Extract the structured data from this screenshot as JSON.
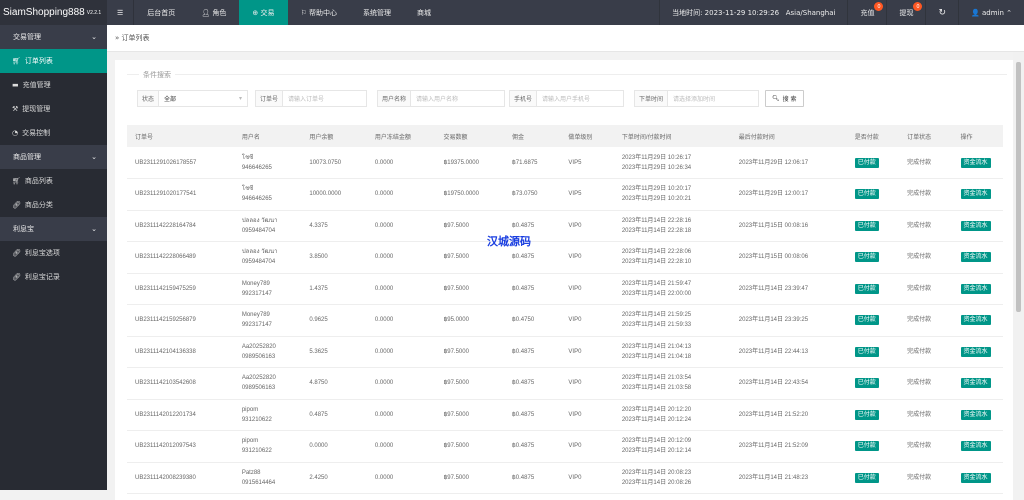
{
  "app": {
    "name": "SiamShopping888",
    "version": "V2.2.1"
  },
  "topnav": [
    {
      "label": "后台首页",
      "icon": ""
    },
    {
      "label": "角色",
      "icon": "user-icon"
    },
    {
      "label": "交易",
      "icon": "globe-icon",
      "active": true
    },
    {
      "label": "帮助中心",
      "icon": "flag-icon"
    },
    {
      "label": "系统管理",
      "icon": ""
    },
    {
      "label": "商城",
      "icon": ""
    }
  ],
  "topright": {
    "time_label": "当地时间: 2023-11-29 10:29:26",
    "timezone": "Asia/Shanghai",
    "recharge": "充值",
    "recharge_badge": "0",
    "withdraw": "提现",
    "withdraw_badge": "0",
    "user": "admin"
  },
  "sidebar": [
    {
      "group": "交易管理",
      "items": [
        {
          "label": "订单列表",
          "icon": "cart-icon",
          "active": true
        },
        {
          "label": "充值管理",
          "icon": "monitor-icon"
        },
        {
          "label": "提现管理",
          "icon": "hammer-icon"
        },
        {
          "label": "交易控制",
          "icon": "gauge-icon"
        }
      ]
    },
    {
      "group": "商品管理",
      "items": [
        {
          "label": "商品列表",
          "icon": "cart-icon"
        },
        {
          "label": "商品分类",
          "icon": "link-icon"
        }
      ]
    },
    {
      "group": "利息宝",
      "items": [
        {
          "label": "利息宝选项",
          "icon": "link-icon"
        },
        {
          "label": "利息宝记录",
          "icon": "link-icon"
        }
      ]
    }
  ],
  "breadcrumb": "订单列表",
  "search": {
    "legend": "条件搜索",
    "status_label": "状态",
    "status_value": "全部",
    "order_label": "订单号",
    "order_ph": "请输入订单号",
    "user_label": "用户名称",
    "user_ph": "请输入用户名称",
    "phone_label": "手机号",
    "phone_ph": "请输入用户手机号",
    "time_label": "下单时间",
    "time_ph": "请选择添加时间",
    "button": "搜 索"
  },
  "table": {
    "headers": [
      "订单号",
      "用户名",
      "用户余额",
      "用户冻结金额",
      "交易数额",
      "佣金",
      "做单级别",
      "下单时间/付款时间",
      "最后付款时间",
      "是否付款",
      "订单状态",
      "操作"
    ],
    "rows": [
      [
        "UB2311291026178557",
        "โชซี",
        "946646265",
        "10073.0750",
        "0.0000",
        "฿19375.0000",
        "฿71.6875",
        "VIP5",
        "2023年11月29日 10:26:17",
        "2023年11月29日 10:26:34",
        "2023年11月29日 12:06:17"
      ],
      [
        "UB2311291020177541",
        "โชซี",
        "946646265",
        "10000.0000",
        "0.0000",
        "฿19750.0000",
        "฿73.0750",
        "VIP5",
        "2023年11月29日 10:20:17",
        "2023年11月29日 10:20:21",
        "2023年11月29日 12:00:17"
      ],
      [
        "UB2311142228164784",
        "ปลลอง วัฒนา",
        "0959484704",
        "4.3375",
        "0.0000",
        "฿97.5000",
        "฿0.4875",
        "VIP0",
        "2023年11月14日 22:28:16",
        "2023年11月14日 22:28:18",
        "2023年11月15日 00:08:16"
      ],
      [
        "UB2311142228066489",
        "ปลลอง วัฒนา",
        "0959484704",
        "3.8500",
        "0.0000",
        "฿97.5000",
        "฿0.4875",
        "VIP0",
        "2023年11月14日 22:28:06",
        "2023年11月14日 22:28:10",
        "2023年11月15日 00:08:06"
      ],
      [
        "UB2311142159475259",
        "Money789",
        "992317147",
        "1.4375",
        "0.0000",
        "฿97.5000",
        "฿0.4875",
        "VIP0",
        "2023年11月14日 21:59:47",
        "2023年11月14日 22:00:00",
        "2023年11月14日 23:39:47"
      ],
      [
        "UB2311142159256879",
        "Money789",
        "992317147",
        "0.9625",
        "0.0000",
        "฿95.0000",
        "฿0.4750",
        "VIP0",
        "2023年11月14日 21:59:25",
        "2023年11月14日 21:59:33",
        "2023年11月14日 23:39:25"
      ],
      [
        "UB2311142104136338",
        "Aa20252820",
        "0989506163",
        "5.3625",
        "0.0000",
        "฿97.5000",
        "฿0.4875",
        "VIP0",
        "2023年11月14日 21:04:13",
        "2023年11月14日 21:04:18",
        "2023年11月14日 22:44:13"
      ],
      [
        "UB2311142103542608",
        "Aa20252820",
        "0989506163",
        "4.8750",
        "0.0000",
        "฿97.5000",
        "฿0.4875",
        "VIP0",
        "2023年11月14日 21:03:54",
        "2023年11月14日 21:03:58",
        "2023年11月14日 22:43:54"
      ],
      [
        "UB2311142012201734",
        "pipom",
        "931210622",
        "0.4875",
        "0.0000",
        "฿97.5000",
        "฿0.4875",
        "VIP0",
        "2023年11月14日 20:12:20",
        "2023年11月14日 20:12:24",
        "2023年11月14日 21:52:20"
      ],
      [
        "UB2311142012097543",
        "pipom",
        "931210622",
        "0.0000",
        "0.0000",
        "฿97.5000",
        "฿0.4875",
        "VIP0",
        "2023年11月14日 20:12:09",
        "2023年11月14日 20:12:14",
        "2023年11月14日 21:52:09"
      ],
      [
        "UB2311142008239380",
        "Patz88",
        "0915614464",
        "2.4250",
        "0.0000",
        "฿97.5000",
        "฿0.4875",
        "VIP0",
        "2023年11月14日 20:08:23",
        "2023年11月14日 20:08:26",
        "2023年11月14日 21:48:23"
      ]
    ],
    "paid_label": "已付款",
    "status_label": "完成付款",
    "action_label": "资金流水"
  },
  "watermark": "汉城源码",
  "colors": {
    "accent": "#009688",
    "topbar": "#393d49",
    "sidebar": "#282b33",
    "badge": "#ff5722"
  }
}
